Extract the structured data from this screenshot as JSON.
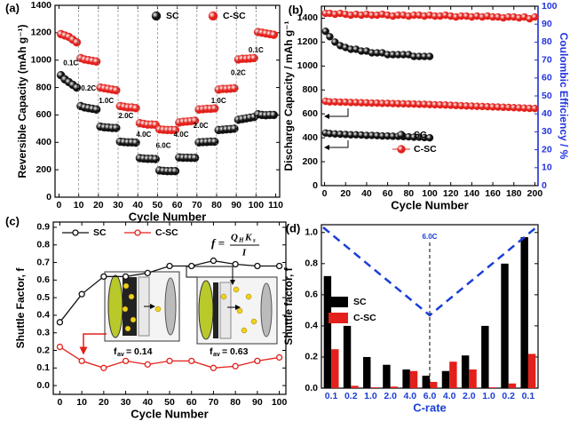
{
  "chart_data": [
    {
      "type": "scatter",
      "label": "(a)",
      "xlabel": "Cycle Number",
      "ylabel": "Reversible Capacity (mAh g⁻¹)",
      "xlim": [
        -2,
        112
      ],
      "xticks": [
        0,
        10,
        20,
        30,
        40,
        50,
        60,
        70,
        80,
        90,
        100,
        110
      ],
      "ylim": [
        0,
        1400
      ],
      "yticks": [
        0,
        200,
        400,
        600,
        800,
        1000,
        1200,
        1400
      ],
      "x": [
        1,
        3,
        5,
        7,
        9,
        11,
        13,
        15,
        17,
        19,
        21,
        23,
        25,
        27,
        29,
        31,
        33,
        35,
        37,
        39,
        41,
        43,
        45,
        47,
        49,
        51,
        53,
        55,
        57,
        59,
        61,
        63,
        65,
        67,
        69,
        71,
        73,
        75,
        77,
        79,
        81,
        83,
        85,
        87,
        89,
        91,
        93,
        95,
        97,
        99,
        101,
        103,
        105,
        107,
        109
      ],
      "series": [
        {
          "name": "SC",
          "color": "#111111",
          "values": [
            890,
            860,
            840,
            820,
            800,
            665,
            655,
            650,
            645,
            640,
            515,
            510,
            508,
            505,
            505,
            405,
            402,
            400,
            400,
            398,
            285,
            282,
            280,
            280,
            278,
            195,
            192,
            190,
            190,
            190,
            290,
            288,
            288,
            287,
            287,
            400,
            402,
            403,
            405,
            405,
            490,
            492,
            495,
            497,
            500,
            565,
            570,
            575,
            580,
            585,
            605,
            600,
            598,
            600,
            600
          ]
        },
        {
          "name": "C-SC",
          "color": "#e3201b",
          "values": [
            1190,
            1180,
            1170,
            1150,
            1130,
            1015,
            1005,
            1000,
            995,
            990,
            800,
            795,
            790,
            785,
            780,
            665,
            660,
            655,
            655,
            650,
            540,
            535,
            530,
            530,
            528,
            495,
            492,
            490,
            490,
            490,
            545,
            550,
            552,
            555,
            558,
            640,
            642,
            645,
            645,
            648,
            785,
            790,
            790,
            792,
            795,
            1005,
            1010,
            1010,
            1012,
            1015,
            1205,
            1200,
            1195,
            1190,
            1185
          ]
        }
      ],
      "annotations": [
        "0.1C",
        "0.2C",
        "1.0C",
        "2.0C",
        "4.0C",
        "6.0C",
        "4.0C",
        "2.0C",
        "1.0C",
        "0.2C",
        "0.1C"
      ]
    },
    {
      "type": "scatter",
      "label": "(b)",
      "xlabel": "Cycle Number",
      "ylabel": "Discharge Capacity / mAh g⁻¹",
      "y2label": "Coulombic Efficiency / %",
      "xlim": [
        -3,
        203
      ],
      "xticks": [
        0,
        20,
        40,
        60,
        80,
        100,
        120,
        140,
        160,
        180,
        200
      ],
      "ylim": [
        0,
        1500
      ],
      "yticks": [
        0,
        200,
        400,
        600,
        800,
        1000,
        1200,
        1400
      ],
      "y2lim": [
        0,
        100
      ],
      "y2ticks": [
        0,
        10,
        20,
        30,
        40,
        50,
        60,
        70,
        80,
        90,
        100
      ],
      "y2color": "#2233dd",
      "series": [
        {
          "name": "SC",
          "color": "#111111",
          "x": [
            1,
            5,
            10,
            15,
            20,
            25,
            30,
            35,
            40,
            45,
            50,
            55,
            60,
            65,
            70,
            75,
            80,
            85,
            90,
            95,
            100
          ],
          "values": [
            440,
            435,
            432,
            430,
            428,
            425,
            425,
            423,
            420,
            420,
            418,
            415,
            415,
            413,
            412,
            410,
            408,
            405,
            405,
            402,
            400
          ]
        },
        {
          "name": "C-SC",
          "color": "#e3201b",
          "x": [
            1,
            5,
            10,
            15,
            20,
            25,
            30,
            35,
            40,
            45,
            50,
            55,
            60,
            65,
            70,
            75,
            80,
            85,
            90,
            95,
            100,
            105,
            110,
            115,
            120,
            125,
            130,
            135,
            140,
            145,
            150,
            155,
            160,
            165,
            170,
            175,
            180,
            185,
            190,
            195,
            200
          ],
          "values": [
            705,
            700,
            700,
            698,
            698,
            695,
            695,
            693,
            692,
            690,
            690,
            688,
            688,
            686,
            685,
            684,
            683,
            682,
            680,
            680,
            678,
            676,
            675,
            674,
            672,
            670,
            668,
            666,
            665,
            663,
            662,
            660,
            658,
            657,
            655,
            654,
            652,
            650,
            648,
            646,
            645
          ]
        },
        {
          "color": "#111111",
          "axis": "y2",
          "x": [
            1,
            5,
            10,
            15,
            20,
            25,
            30,
            35,
            40,
            45,
            50,
            55,
            60,
            65,
            70,
            75,
            80,
            85,
            90,
            95,
            100
          ],
          "values": [
            86,
            83,
            80,
            78,
            77,
            76,
            76,
            75,
            75,
            74,
            74,
            74,
            73,
            73,
            73,
            73,
            73,
            72,
            72,
            72,
            72
          ]
        },
        {
          "color": "#e3201b",
          "axis": "y2",
          "x": [
            1,
            5,
            10,
            15,
            20,
            25,
            30,
            35,
            40,
            45,
            50,
            55,
            60,
            65,
            70,
            75,
            80,
            85,
            90,
            95,
            100,
            105,
            110,
            115,
            120,
            125,
            130,
            135,
            140,
            145,
            150,
            155,
            160,
            165,
            170,
            175,
            180,
            185,
            190,
            195,
            200
          ],
          "values": [
            96,
            96,
            95.5,
            96,
            95.5,
            95,
            95.5,
            95,
            95.5,
            95,
            95,
            95.5,
            95,
            94.5,
            95,
            95,
            94.5,
            95,
            95,
            94.5,
            95,
            94.5,
            94.5,
            95,
            94.5,
            94,
            94.5,
            94.5,
            94,
            94.5,
            94,
            94.5,
            94,
            94,
            93.5,
            94,
            94,
            93.5,
            94,
            93,
            94
          ]
        }
      ]
    },
    {
      "type": "line",
      "label": "(c)",
      "xlabel": "Cycle Number",
      "ylabel": "Shuttle Factor, f",
      "xlim": [
        -3,
        103
      ],
      "xticks": [
        0,
        10,
        20,
        30,
        40,
        50,
        60,
        70,
        80,
        90,
        100
      ],
      "ylim": [
        -0.05,
        0.93
      ],
      "yticks": [
        {
          "value": 0,
          "label": "0.0"
        },
        0.1,
        0.2,
        0.3,
        0.4,
        0.5,
        0.6,
        0.7,
        0.8,
        0.9
      ],
      "x": [
        0,
        10,
        20,
        30,
        40,
        50,
        60,
        70,
        80,
        90,
        100
      ],
      "series": [
        {
          "name": "SC",
          "color": "#111111",
          "values": [
            0.36,
            0.52,
            0.62,
            0.62,
            0.64,
            0.68,
            0.68,
            0.71,
            0.69,
            0.68,
            0.68
          ]
        },
        {
          "name": "C-SC",
          "color": "#e3201b",
          "values": [
            0.22,
            0.14,
            0.1,
            0.14,
            0.12,
            0.14,
            0.14,
            0.1,
            0.11,
            0.14,
            0.16
          ]
        }
      ],
      "formula": {
        "lhs": "f =",
        "numerator": [
          "Q",
          "H",
          "K",
          "s"
        ],
        "denominator": "I"
      },
      "annotations": [
        {
          "main": "f",
          "sub": "av",
          "rest": "= 0.14"
        },
        {
          "main": "f",
          "sub": "av",
          "rest": "= 0.63"
        }
      ]
    },
    {
      "type": "bar",
      "label": "(d)",
      "xlabel": "C-rate",
      "ylabel": "Shuttle factor, f",
      "categories": [
        "0.1",
        "0.2",
        "1.0",
        "2.0",
        "4.0",
        "6.0",
        "4.0",
        "2.0",
        "1.0",
        "0.2",
        "0.1"
      ],
      "ylim": [
        0,
        1.05
      ],
      "yticks": [
        {
          "value": 0,
          "label": "0.0"
        },
        0.2,
        0.4,
        0.6,
        0.8,
        {
          "value": 1,
          "label": "1.0"
        }
      ],
      "series": [
        {
          "name": "SC",
          "color": "#000000",
          "values": [
            0.72,
            0.4,
            0.2,
            0.15,
            0.12,
            0.08,
            0.11,
            0.21,
            0.4,
            0.8,
            0.97
          ]
        },
        {
          "name": "C-SC",
          "color": "#e3201b",
          "values": [
            0.25,
            0.015,
            0.005,
            0.01,
            0.11,
            0.04,
            0.17,
            0.12,
            0.005,
            0.03,
            0.22
          ]
        }
      ],
      "annotations": [
        "6.0C"
      ],
      "accent": "#1a3fd6"
    }
  ]
}
